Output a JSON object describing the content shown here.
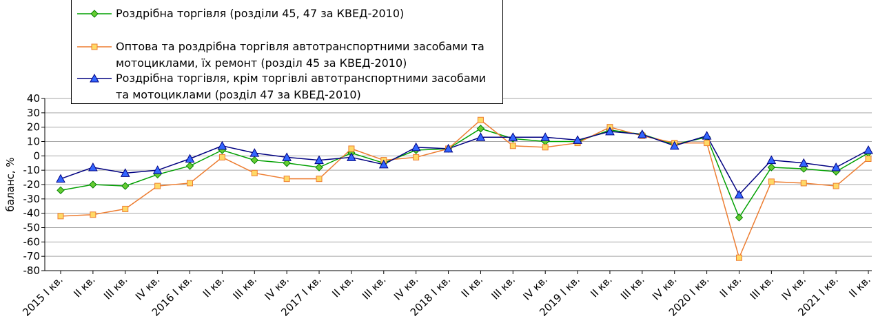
{
  "chart_data": {
    "type": "line",
    "y_label": "баланс, %",
    "categories": [
      "2015 I кв.",
      "II кв.",
      "III кв.",
      "IV кв.",
      "2016 I кв.",
      "II кв.",
      "III кв.",
      "IV кв.",
      "2017 I кв.",
      "II кв.",
      "III кв.",
      "IV кв.",
      "2018 I кв.",
      "II кв.",
      "III кв.",
      "IV кв.",
      "2019 I кв.",
      "II кв.",
      "III кв.",
      "IV кв.",
      "2020 I кв.",
      "II кв.",
      "III кв.",
      "IV кв.",
      "2021 I кв.",
      "II кв."
    ],
    "series": [
      {
        "name": "Роздрібна торгівля (розділи 45, 47 за КВЕД-2010)",
        "color": "#00a000",
        "marker": "diamond",
        "marker_fill": "#66cc33",
        "values": [
          -24,
          -20,
          -21,
          -13,
          -7,
          4,
          -3,
          -5,
          -8,
          2,
          -5,
          4,
          5,
          19,
          12,
          10,
          10,
          18,
          15,
          8,
          13,
          -43,
          -8,
          -9,
          -11,
          2
        ]
      },
      {
        "name": "Оптова та роздрібна торгівля автотранспортними засобами та мотоциклами, їх ремонт (розділ 45 за КВЕД-2010)",
        "color": "#ed7d31",
        "marker": "square",
        "marker_fill": "#ffd966",
        "values": [
          -42,
          -41,
          -37,
          -21,
          -19,
          -1,
          -12,
          -16,
          -16,
          5,
          -3,
          -1,
          5,
          25,
          7,
          6,
          9,
          20,
          14,
          9,
          9,
          -71,
          -18,
          -19,
          -21,
          -2
        ]
      },
      {
        "name": "Роздрібна торгівля, крім торгівлі автотранспортними засобами та мотоциклами (розділ 47 за КВЕД-2010)",
        "color": "#000080",
        "marker": "triangle",
        "marker_fill": "#3366ff",
        "values": [
          -16,
          -8,
          -12,
          -10,
          -2,
          7,
          2,
          -1,
          -3,
          -1,
          -6,
          6,
          5,
          13,
          13,
          13,
          11,
          17,
          15,
          7,
          14,
          -27,
          -3,
          -5,
          -8,
          4
        ]
      }
    ],
    "ylim": [
      -80,
      40
    ],
    "yticks": [
      -80,
      -70,
      -60,
      -50,
      -40,
      -30,
      -20,
      -10,
      0,
      10,
      20,
      30,
      40
    ],
    "grid": true
  }
}
